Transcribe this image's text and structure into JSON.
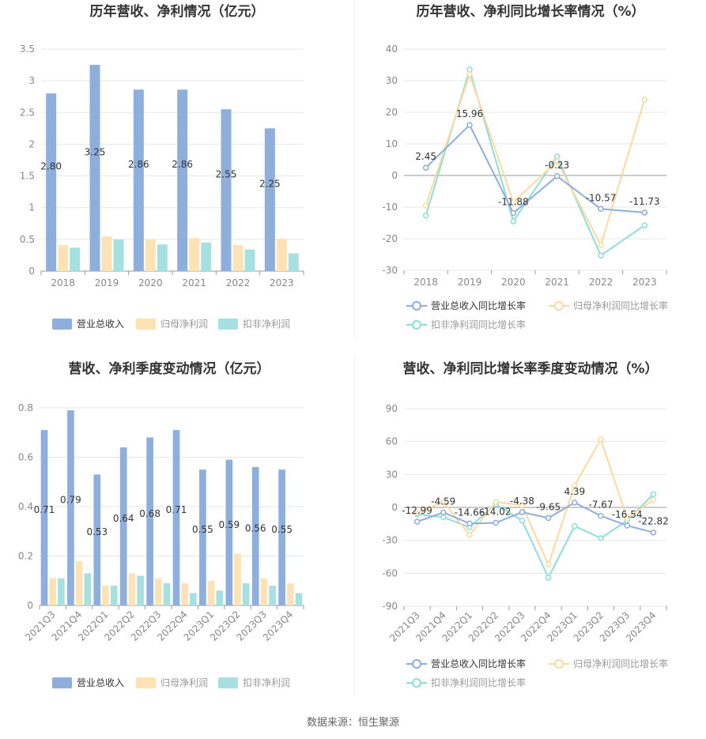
{
  "source_text": "数据来源：恒生聚源",
  "colors": {
    "revenue": "#8eaedc",
    "net": "#fde2b5",
    "deduct": "#a7e0e0",
    "revenue_line": "#8eaedc",
    "net_line": "#fcd9a0",
    "deduct_line": "#8fdcdc"
  },
  "chart_data": [
    {
      "id": "annual_values",
      "type": "bar",
      "title": "历年营收、净利情况（亿元）",
      "categories": [
        "2018",
        "2019",
        "2020",
        "2021",
        "2022",
        "2023"
      ],
      "ylim": [
        0,
        3.5
      ],
      "yticks": [
        "0",
        "0.5",
        "1",
        "1.5",
        "2",
        "2.5",
        "3",
        "3.5"
      ],
      "series": [
        {
          "name": "营业总收入",
          "values": [
            2.8,
            3.25,
            2.86,
            2.86,
            2.55,
            2.25
          ],
          "labels": [
            "2.80",
            "3.25",
            "2.86",
            "2.86",
            "2.55",
            "2.25"
          ]
        },
        {
          "name": "归母净利润",
          "values": [
            0.41,
            0.55,
            0.5,
            0.52,
            0.41,
            0.51
          ]
        },
        {
          "name": "扣非净利润",
          "values": [
            0.37,
            0.5,
            0.42,
            0.45,
            0.34,
            0.28
          ]
        }
      ],
      "grid": true,
      "legend": "bottom"
    },
    {
      "id": "annual_growth",
      "type": "line",
      "title": "历年营收、净利同比增长率情况（%）",
      "categories": [
        "2018",
        "2019",
        "2020",
        "2021",
        "2022",
        "2023"
      ],
      "ylim": [
        -30,
        40
      ],
      "yticks": [
        "-30",
        "-20",
        "-10",
        "0",
        "10",
        "20",
        "30",
        "40"
      ],
      "series": [
        {
          "name": "营业总收入同比增长率",
          "values": [
            2.45,
            15.96,
            -11.88,
            -0.23,
            -10.57,
            -11.73
          ],
          "labels": [
            "2.45",
            "15.96",
            "-11.88",
            "-0.23",
            "-10.57",
            "-11.73"
          ]
        },
        {
          "name": "归母净利润同比增长率",
          "values": [
            -9.5,
            32.0,
            -8.5,
            4.5,
            -22.0,
            24.0
          ]
        },
        {
          "name": "扣非净利润同比增长率",
          "values": [
            -12.7,
            33.5,
            -14.5,
            6.0,
            -25.3,
            -15.8
          ]
        }
      ],
      "grid": true,
      "legend": "bottom"
    },
    {
      "id": "quarter_values",
      "type": "bar",
      "title": "营收、净利季度变动情况（亿元）",
      "categories": [
        "2021Q3",
        "2021Q4",
        "2022Q1",
        "2022Q2",
        "2022Q3",
        "2022Q4",
        "2023Q1",
        "2023Q2",
        "2023Q3",
        "2023Q4"
      ],
      "ylim": [
        0,
        0.8
      ],
      "yticks": [
        "0",
        "0.2",
        "0.4",
        "0.6",
        "0.8"
      ],
      "series": [
        {
          "name": "营业总收入",
          "values": [
            0.71,
            0.79,
            0.53,
            0.64,
            0.68,
            0.71,
            0.55,
            0.59,
            0.56,
            0.55
          ],
          "labels": [
            "0.71",
            "0.79",
            "0.53",
            "0.64",
            "0.68",
            "0.71",
            "0.55",
            "0.59",
            "0.56",
            "0.55"
          ]
        },
        {
          "name": "归母净利润",
          "values": [
            0.11,
            0.18,
            0.08,
            0.13,
            0.11,
            0.09,
            0.1,
            0.21,
            0.11,
            0.09
          ]
        },
        {
          "name": "扣非净利润",
          "values": [
            0.11,
            0.13,
            0.08,
            0.12,
            0.09,
            0.05,
            0.06,
            0.09,
            0.08,
            0.05
          ]
        }
      ],
      "grid": true,
      "legend": "bottom"
    },
    {
      "id": "quarter_growth",
      "type": "line",
      "title": "营收、净利同比增长率季度变动情况（%）",
      "categories": [
        "2021Q3",
        "2021Q4",
        "2022Q1",
        "2022Q2",
        "2022Q3",
        "2022Q4",
        "2023Q1",
        "2023Q2",
        "2023Q3",
        "2023Q4"
      ],
      "ylim": [
        -90,
        90
      ],
      "yticks": [
        "-90",
        "-60",
        "-30",
        "0",
        "30",
        "60",
        "90"
      ],
      "series": [
        {
          "name": "营业总收入同比增长率",
          "values": [
            -12.99,
            -4.59,
            -14.66,
            -14.02,
            -4.38,
            -9.65,
            4.39,
            -7.67,
            -16.54,
            -22.82
          ],
          "labels": [
            "-12.99",
            "-4.59",
            "-14.66",
            "-14.02",
            "-4.38",
            "-9.65",
            "4.39",
            "-7.67",
            "-16.54",
            "-22.82"
          ]
        },
        {
          "name": "归母净利润同比增长率",
          "values": [
            -5,
            5,
            -25,
            5,
            2,
            -52,
            20,
            62,
            -10,
            7
          ]
        },
        {
          "name": "扣非净利润同比增长率",
          "values": [
            -6,
            -9,
            -18,
            3,
            -12,
            -64,
            -17,
            -28,
            -12,
            12
          ]
        }
      ],
      "grid": true,
      "legend": "bottom"
    }
  ]
}
